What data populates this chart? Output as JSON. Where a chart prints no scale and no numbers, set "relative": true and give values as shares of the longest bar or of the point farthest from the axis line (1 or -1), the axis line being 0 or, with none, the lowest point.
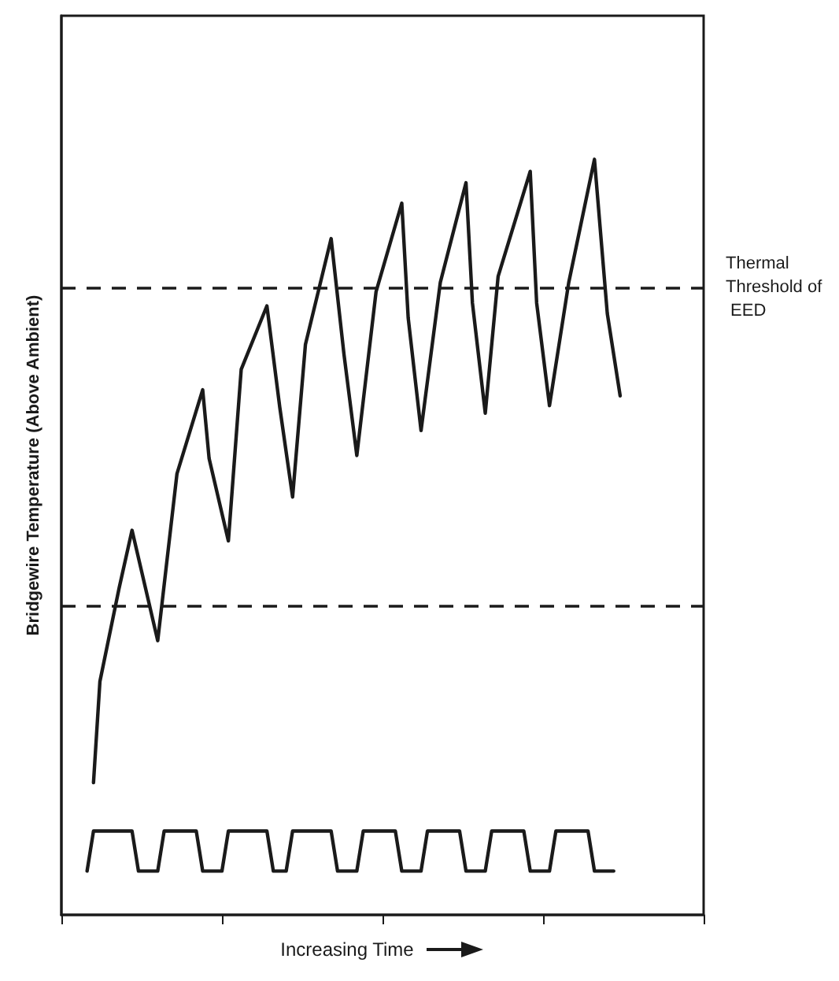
{
  "chart_data": {
    "type": "line",
    "relative": true,
    "xlabel": "Increasing Time",
    "ylabel": "Bridgewire Temperature (Above Ambient)",
    "categories": [
      null,
      null,
      null,
      null,
      null,
      null,
      null,
      null,
      null,
      null,
      null,
      null,
      null,
      null,
      null,
      null,
      null,
      null,
      null,
      null,
      null,
      null,
      null,
      null,
      null,
      null,
      null,
      null,
      null,
      null,
      null,
      null,
      null,
      null,
      null,
      null,
      null,
      null,
      null,
      null,
      null,
      null,
      null,
      null,
      null,
      null,
      null,
      null,
      null,
      null,
      null,
      null,
      null,
      null,
      null,
      null,
      null,
      null,
      null,
      null,
      null,
      null,
      null,
      null,
      null,
      null,
      null,
      null,
      null,
      null,
      null,
      null,
      null,
      null,
      null,
      null,
      null,
      null,
      null,
      null,
      null,
      null,
      null,
      null,
      null,
      null,
      null,
      null,
      null,
      null,
      null,
      null,
      null,
      null,
      null,
      null,
      null,
      null,
      null,
      null,
      null
    ],
    "grid": false,
    "marker": "none",
    "line_style": "solid",
    "series": [
      {
        "color": "#1a1a1a",
        "values": [
          null,
          null,
          null,
          null,
          null,
          0.175,
          0.309,
          null,
          null,
          0.433,
          null,
          0.509,
          null,
          null,
          null,
          0.363,
          null,
          null,
          0.584,
          null,
          null,
          null,
          0.695,
          0.604,
          null,
          null,
          0.495,
          null,
          0.722,
          null,
          null,
          null,
          0.806,
          null,
          0.672,
          null,
          0.553,
          null,
          0.755,
          null,
          null,
          null,
          0.895,
          null,
          0.742,
          null,
          0.608,
          null,
          null,
          0.825,
          null,
          null,
          null,
          0.942,
          0.79,
          null,
          0.641,
          null,
          null,
          0.837,
          null,
          null,
          null,
          0.969,
          0.81,
          null,
          0.664,
          null,
          0.845,
          null,
          null,
          null,
          null,
          0.984,
          0.81,
          null,
          0.674,
          null,
          null,
          0.837,
          null,
          null,
          null,
          1,
          null,
          0.796,
          null,
          0.687,
          null,
          null,
          null,
          null,
          null,
          null,
          null,
          null,
          null,
          null,
          null,
          null,
          null
        ]
      },
      {
        "color": "#1a1a1a",
        "values": [
          null,
          null,
          null,
          null,
          0.058,
          0.111,
          null,
          null,
          null,
          null,
          null,
          0.111,
          0.058,
          null,
          null,
          0.058,
          0.111,
          null,
          null,
          null,
          null,
          0.111,
          0.058,
          null,
          null,
          0.058,
          0.111,
          null,
          null,
          null,
          null,
          null,
          0.111,
          0.058,
          null,
          0.058,
          0.111,
          null,
          null,
          null,
          null,
          null,
          0.111,
          0.058,
          null,
          null,
          0.058,
          0.111,
          null,
          null,
          null,
          null,
          0.111,
          0.058,
          null,
          null,
          0.058,
          0.111,
          null,
          null,
          null,
          null,
          0.111,
          0.058,
          null,
          null,
          0.058,
          0.111,
          null,
          null,
          null,
          null,
          0.111,
          0.058,
          null,
          null,
          0.058,
          0.111,
          null,
          null,
          null,
          null,
          0.111,
          0.058,
          null,
          null,
          0.058,
          null,
          null,
          null,
          null,
          null,
          null,
          null,
          null,
          null,
          null,
          null,
          null,
          null,
          null
        ]
      }
    ],
    "ref_lines": [
      {
        "axis": "y",
        "value": 0.831,
        "label": "Thermal Threshold of EED",
        "color": "#1a1a1a",
        "line_style": "dashed"
      },
      {
        "axis": "y",
        "value": 0.412,
        "label": null,
        "color": "#1a1a1a",
        "line_style": "dashed"
      }
    ]
  }
}
